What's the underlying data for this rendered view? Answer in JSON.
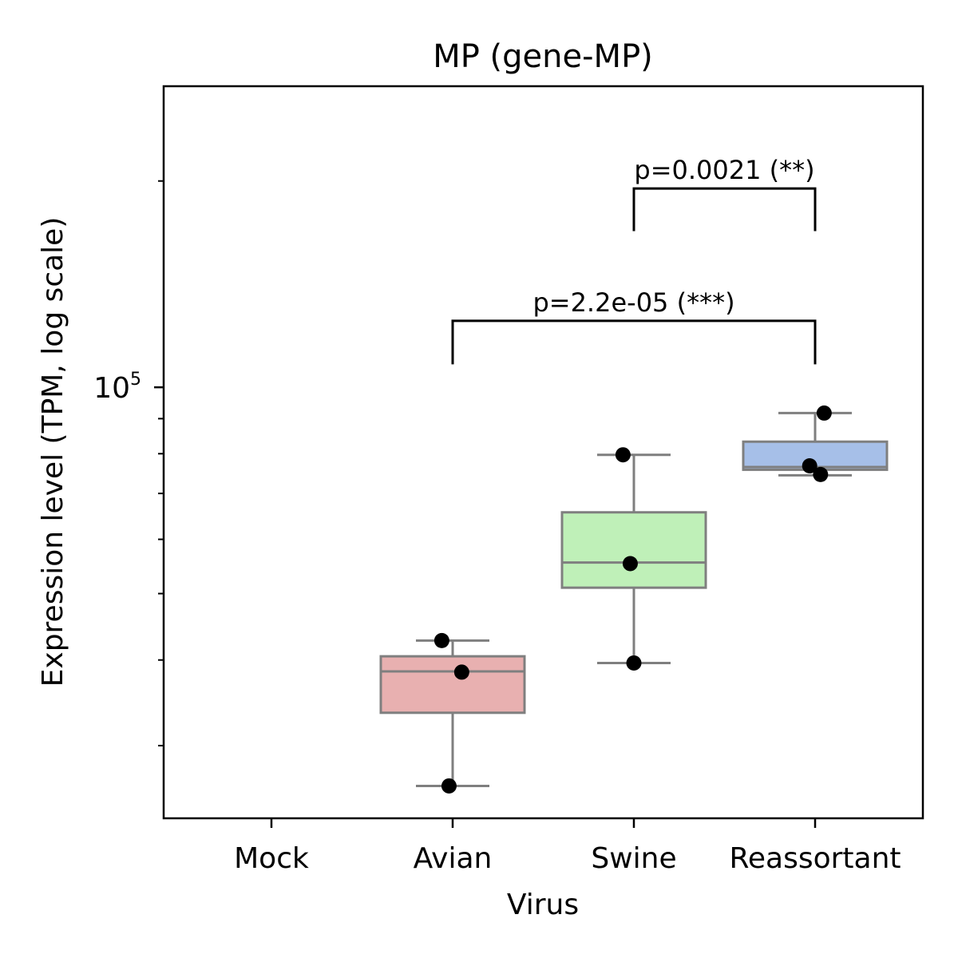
{
  "chart_data": {
    "type": "box",
    "title": "MP (gene-MP)",
    "xlabel": "Virus",
    "ylabel": "Expression level (TPM, log scale)",
    "yscale": "log",
    "ylim": [
      23500,
      275000
    ],
    "ytick_major": {
      "value": 100000,
      "base": "10",
      "exponent": "5"
    },
    "yticks_minor": [
      30000,
      40000,
      50000,
      60000,
      70000,
      80000,
      90000,
      200000
    ],
    "categories": [
      "Mock",
      "Avian",
      "Swine",
      "Reassortant"
    ],
    "box_color_edge": "#7f7f7f",
    "boxes": [
      {
        "category": "Mock",
        "color": null,
        "q1": null,
        "median": null,
        "q3": null,
        "whisker_low": null,
        "whisker_high": null,
        "points": []
      },
      {
        "category": "Avian",
        "color": "#e8b0b0",
        "q1": 33500,
        "median": 38500,
        "q3": 40500,
        "whisker_low": 26200,
        "whisker_high": 42700,
        "points": [
          42700,
          38400,
          26200
        ]
      },
      {
        "category": "Swine",
        "color": "#bff0b8",
        "q1": 51000,
        "median": 55500,
        "q3": 65700,
        "whisker_low": 39600,
        "whisker_high": 79700,
        "points": [
          79700,
          55300,
          39600
        ]
      },
      {
        "category": "Reassortant",
        "color": "#a6bfe8",
        "q1": 75800,
        "median": 76500,
        "q3": 83300,
        "whisker_low": 74400,
        "whisker_high": 91700,
        "points": [
          91700,
          76800,
          74600
        ]
      }
    ],
    "jitter": [
      [],
      [
        -0.06,
        0.05,
        -0.02
      ],
      [
        -0.06,
        -0.02,
        0.0
      ],
      [
        0.05,
        -0.03,
        0.03
      ]
    ],
    "annotations": [
      {
        "from": "Avian",
        "to": "Reassortant",
        "y": 125000,
        "drop_to": 108000,
        "text": "p=2.2e-05 (***)"
      },
      {
        "from": "Swine",
        "to": "Reassortant",
        "y": 195000,
        "drop_to": 169000,
        "text": "p=0.0021 (**)"
      }
    ],
    "grid": false
  }
}
